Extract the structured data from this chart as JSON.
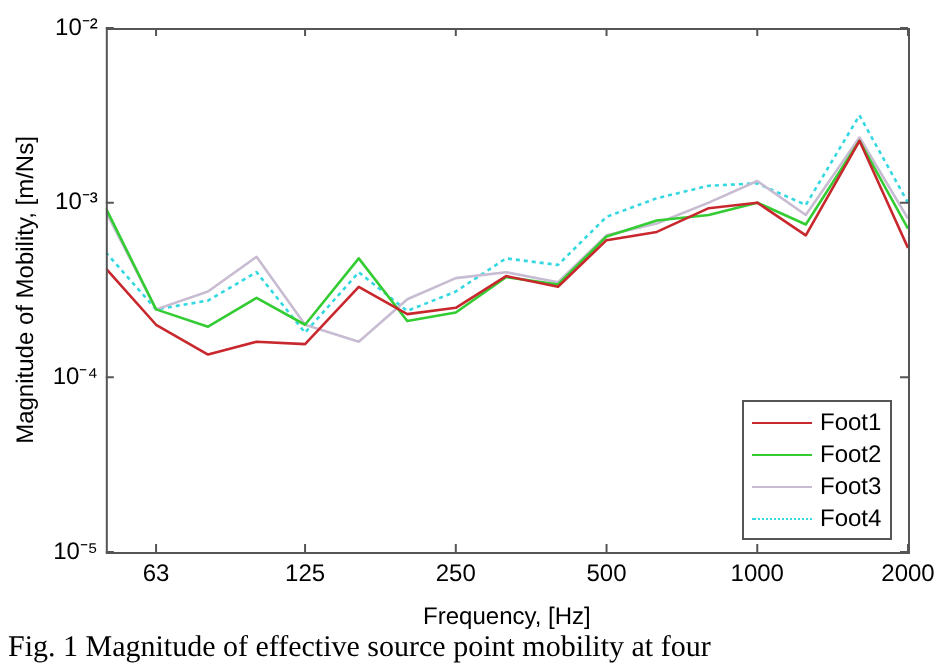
{
  "chart_data": {
    "type": "line",
    "xlabel": "Frequency, [Hz]",
    "ylabel": "Magnitude of Mobility, [m/Ns]",
    "x": [
      50,
      63,
      80,
      100,
      125,
      160,
      200,
      250,
      315,
      400,
      500,
      630,
      800,
      1000,
      1250,
      1600,
      2000
    ],
    "series": [
      {
        "name": "Foot1",
        "color": "#c8282d",
        "values": [
          0.00042,
          0.0002,
          0.000135,
          0.00016,
          0.000155,
          0.00033,
          0.00023,
          0.00025,
          0.00038,
          0.00033,
          0.00061,
          0.00068,
          0.00093,
          0.001,
          0.00065,
          0.00226,
          0.00055
        ]
      },
      {
        "name": "Foot2",
        "color": "#33cc33",
        "values": [
          0.00093,
          0.000245,
          0.000195,
          0.000285,
          0.0002,
          0.00048,
          0.00021,
          0.000235,
          0.000375,
          0.00034,
          0.00064,
          0.00079,
          0.00085,
          0.001,
          0.00075,
          0.00226,
          0.00071
        ]
      },
      {
        "name": "Foot3",
        "color": "#c8bcd2",
        "values": [
          0.00089,
          0.000245,
          0.00031,
          0.00049,
          0.0002,
          0.00016,
          0.00028,
          0.00037,
          0.0004,
          0.00035,
          0.00065,
          0.00076,
          0.001,
          0.00133,
          0.00085,
          0.00236,
          0.00081
        ]
      },
      {
        "name": "Foot4",
        "color": "#33d8e0",
        "line_style": "dotted",
        "values": [
          0.00052,
          0.000245,
          0.000275,
          0.0004,
          0.00018,
          0.0004,
          0.00024,
          0.00031,
          0.00048,
          0.00044,
          0.00083,
          0.00106,
          0.00125,
          0.00129,
          0.00097,
          0.00316,
          0.001
        ]
      }
    ],
    "log": "xy",
    "xlim": [
      50,
      2000
    ],
    "xticks": [
      63,
      125,
      250,
      500,
      1000,
      2000
    ],
    "ylim": [
      1e-05,
      0.01
    ],
    "yticks": [
      {
        "value": 1e-05,
        "label": "10⁻⁵"
      },
      {
        "value": 0.0001,
        "label": "10⁻⁴"
      },
      {
        "value": 0.001,
        "label": "10⁻³"
      },
      {
        "value": 0.01,
        "label": "10⁻²"
      }
    ],
    "grid": false,
    "legend": "bottom right",
    "marker": "none",
    "line_style": "solid",
    "annotations": [
      "Fig. 1 Magnitude of effective source point mobility at four"
    ]
  }
}
